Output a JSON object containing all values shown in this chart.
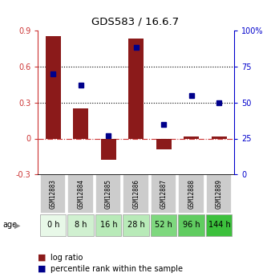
{
  "title": "GDS583 / 16.6.7",
  "samples": [
    "GSM12883",
    "GSM12884",
    "GSM12885",
    "GSM12886",
    "GSM12887",
    "GSM12888",
    "GSM12889"
  ],
  "ages": [
    "0 h",
    "8 h",
    "16 h",
    "28 h",
    "52 h",
    "96 h",
    "144 h"
  ],
  "log_ratio": [
    0.85,
    0.25,
    -0.18,
    0.83,
    -0.09,
    0.02,
    0.02
  ],
  "percentile_rank": [
    70,
    62,
    27,
    88,
    35,
    55,
    50
  ],
  "bar_color": "#8B1A1A",
  "dot_color": "#00008B",
  "ylim_left": [
    -0.3,
    0.9
  ],
  "ylim_right": [
    0,
    100
  ],
  "yticks_left": [
    -0.3,
    0.0,
    0.3,
    0.6,
    0.9
  ],
  "yticks_right": [
    0,
    25,
    50,
    75,
    100
  ],
  "ytick_labels_left": [
    "-0.3",
    "0",
    "0.3",
    "0.6",
    "0.9"
  ],
  "ytick_labels_right": [
    "0",
    "25",
    "50",
    "75",
    "100%"
  ],
  "hline_y": [
    0.3,
    0.6
  ],
  "age_colors": [
    "#e8f8e8",
    "#d0f0d0",
    "#b8eab8",
    "#b8eab8",
    "#7ed87e",
    "#60cc60",
    "#3cc03c"
  ],
  "bg_color": "#ffffff",
  "zero_line_color": "#cc3333",
  "left_axis_color": "#cc3333",
  "right_axis_color": "#0000cc",
  "sample_box_color": "#cccccc",
  "arrow_color": "#888888"
}
